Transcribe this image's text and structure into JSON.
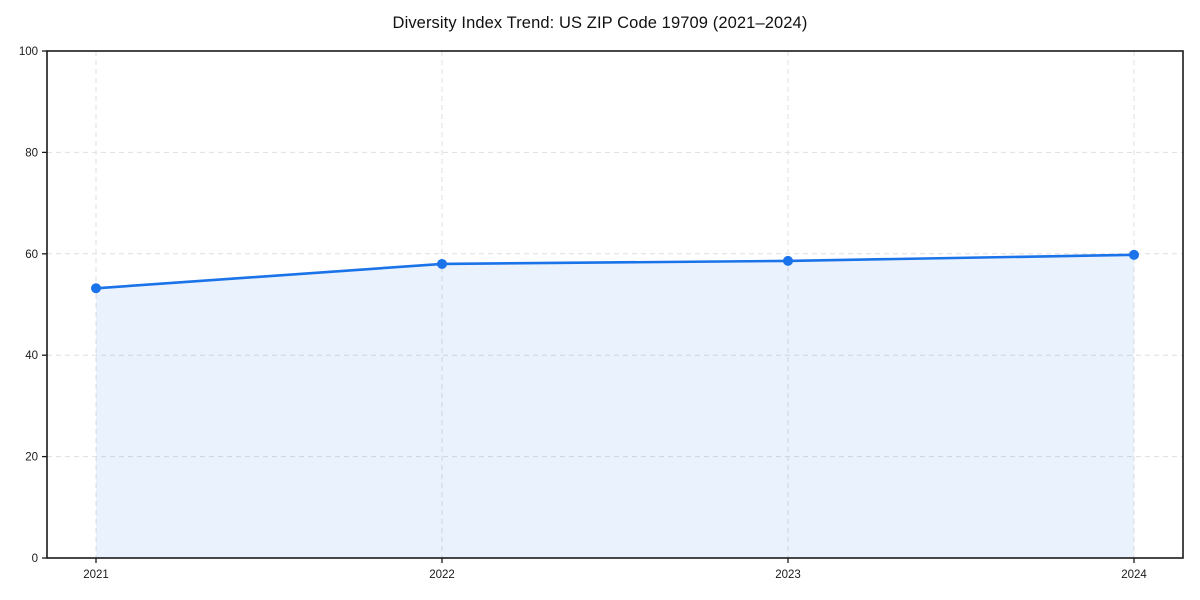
{
  "chart_data": {
    "type": "line",
    "title": "Diversity Index Trend: US ZIP Code 19709 (2021–2024)",
    "x": [
      2021,
      2022,
      2023,
      2024
    ],
    "series": [
      {
        "name": "Diversity Index",
        "values": [
          53.2,
          58.0,
          58.6,
          59.8
        ]
      }
    ],
    "xlabel": "",
    "ylabel": "",
    "ylim": [
      0,
      100
    ],
    "yticks": [
      0,
      20,
      40,
      60,
      80,
      100
    ],
    "grid": true,
    "grid_style": "dashed",
    "legend": false,
    "area_fill": true,
    "colors": {
      "line": "#1a73e8",
      "marker": "#1a73e8",
      "fill": "#1a73e8",
      "fill_opacity": 0.09,
      "grid": "#dfdfdf",
      "spine": "#1a1a1a",
      "tick_text": "#1a1a1a",
      "background": "#ffffff"
    }
  }
}
